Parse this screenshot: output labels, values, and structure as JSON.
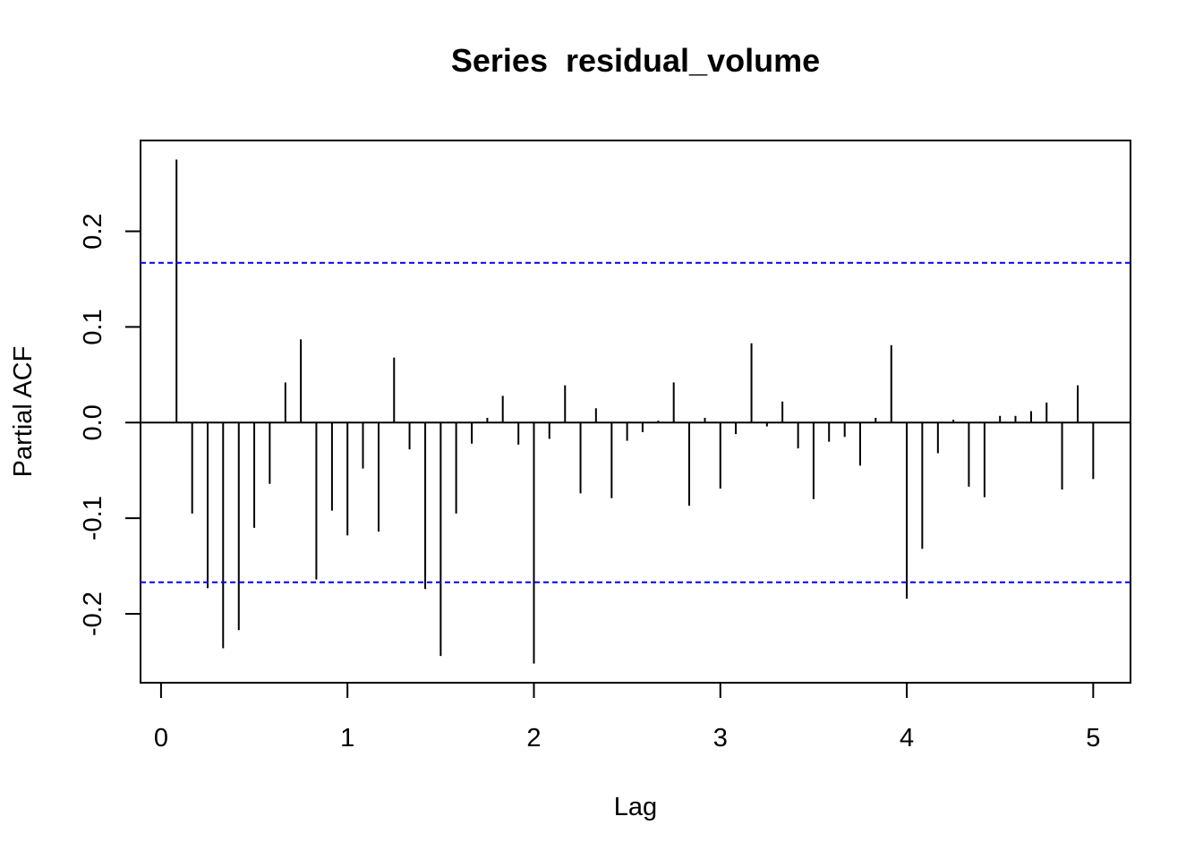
{
  "chart_data": {
    "type": "bar",
    "title": "Series  residual_volume",
    "xlabel": "Lag",
    "ylabel": "Partial ACF",
    "xlim": [
      -0.11,
      5.2
    ],
    "ylim": [
      -0.272,
      0.295
    ],
    "x_ticks": [
      0,
      1,
      2,
      3,
      4,
      5
    ],
    "y_ticks": [
      -0.2,
      -0.1,
      0.0,
      0.1,
      0.2
    ],
    "x_tick_labels": [
      "0",
      "1",
      "2",
      "3",
      "4",
      "5"
    ],
    "y_tick_labels": [
      "-0.2",
      "-0.1",
      "0.0",
      "0.1",
      "0.2"
    ],
    "confidence_bound": 0.167,
    "bar_color": "#000000",
    "bound_color": "#0000ff",
    "grid": false,
    "series": [
      {
        "x": [
          0.083,
          0.167,
          0.25,
          0.333,
          0.417,
          0.5,
          0.583,
          0.667,
          0.75,
          0.833,
          0.917,
          1.0,
          1.083,
          1.167,
          1.25,
          1.333,
          1.417,
          1.5,
          1.583,
          1.667,
          1.75,
          1.833,
          1.917,
          2.0,
          2.083,
          2.167,
          2.25,
          2.333,
          2.417,
          2.5,
          2.583,
          2.667,
          2.75,
          2.833,
          2.917,
          3.0,
          3.083,
          3.167,
          3.25,
          3.333,
          3.417,
          3.5,
          3.583,
          3.667,
          3.75,
          3.833,
          3.917,
          4.0,
          4.083,
          4.167,
          4.25,
          4.333,
          4.417,
          4.5,
          4.583,
          4.667,
          4.75,
          4.833,
          4.917,
          5.0
        ],
        "values": [
          0.275,
          -0.095,
          -0.173,
          -0.236,
          -0.217,
          -0.11,
          -0.064,
          0.042,
          0.087,
          -0.164,
          -0.092,
          -0.118,
          -0.048,
          -0.114,
          0.068,
          -0.028,
          -0.174,
          -0.244,
          -0.095,
          -0.022,
          0.005,
          0.028,
          -0.023,
          -0.252,
          -0.017,
          0.039,
          -0.074,
          0.015,
          -0.079,
          -0.019,
          -0.01,
          0.002,
          0.042,
          -0.087,
          0.005,
          -0.069,
          -0.012,
          0.083,
          -0.004,
          0.022,
          -0.027,
          -0.08,
          -0.02,
          -0.015,
          -0.045,
          0.005,
          0.081,
          -0.184,
          -0.132,
          -0.032,
          0.003,
          -0.067,
          -0.078,
          0.007,
          0.007,
          0.012,
          0.021,
          -0.07,
          0.039,
          -0.059
        ]
      }
    ]
  }
}
